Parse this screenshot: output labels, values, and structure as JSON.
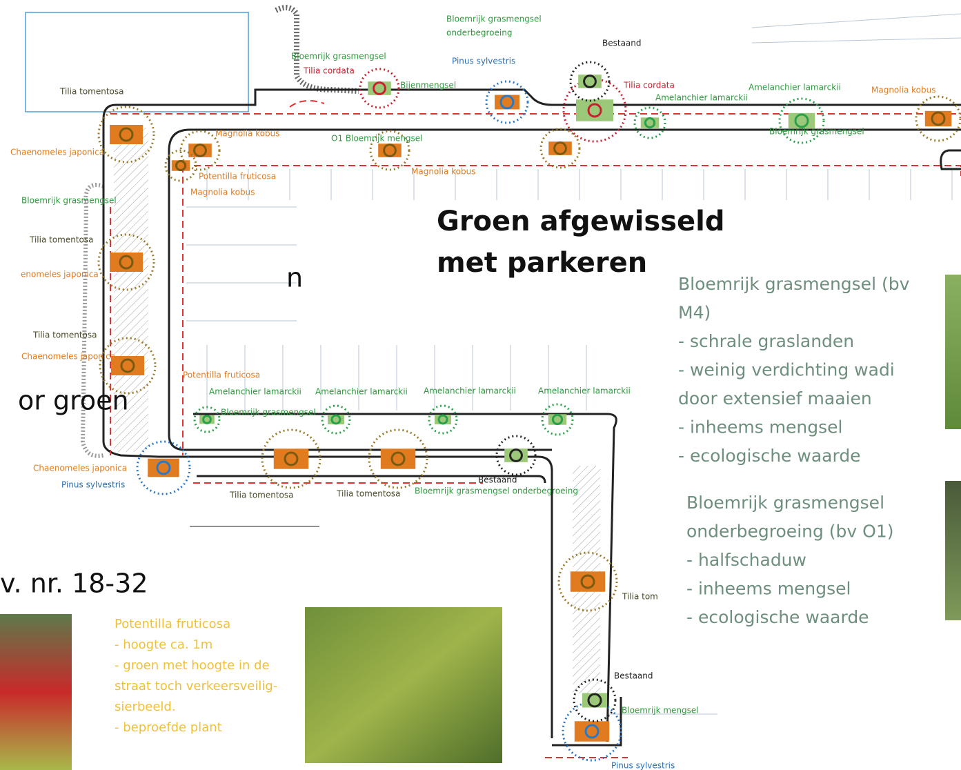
{
  "plan_labels": [
    "Bloemrijk grasmengsel",
    "onderbegroeing",
    "Bestaand",
    "Bloemrijk grasmengsel",
    "Pinus sylvestris",
    "Tilia cordata",
    "Bijenmengsel",
    "Tilia tomentosa",
    "Tilia cordata",
    "Amelanchier lamarckii",
    "Magnolia kobus",
    "Amelanchier lamarckii",
    "Magnolia kobus",
    "O1 Bloemrijk mengsel",
    "Bloemrijk grasmengsel",
    "Chaenomeles japonica",
    "Potentilla fruticosa",
    "Magnolia kobus",
    "Magnolia kobus",
    "Bloemrijk grasmengsel",
    "Tilia tomentosa",
    "enomeles japonica",
    "Tilia tomentosa",
    "Chaenomeles japonica",
    "Potentilla fruticosa",
    "Amelanchier lamarckii",
    "Amelanchier lamarckii",
    "Amelanchier lamarckii",
    "Amelanchier lamarckii",
    "Bloemrijk grasmengsel",
    "Chaenomeles japonica",
    "Pinus sylvestris",
    "Bestaand",
    "Tilia tomentosa",
    "Tilia tomentosa",
    "Bloemrijk grasmengsel onderbegroeing",
    "Tilia tom",
    "Bestaand",
    "Bloemrijk mengsel",
    "Pinus sylvestris"
  ],
  "heading": [
    "Groen afgewisseld",
    "met parkeren"
  ],
  "cut_texts": [
    "n",
    "or groen",
    "v. nr. 18-32"
  ],
  "panel_m4": [
    "Bloemrijk grasmengsel (bv",
    "M4)",
    "- schrale graslanden",
    "- weinig verdichting wadi",
    "door extensief maaien",
    "- inheems mengsel",
    "- ecologische waarde"
  ],
  "panel_o1": [
    "Bloemrijk grasmengsel",
    "onderbegroeing (bv O1)",
    "- halfschaduw",
    "- inheems mengsel",
    "- ecologische waarde"
  ],
  "potentilla": [
    "Potentilla fruticosa",
    "- hoogte ca. 1m",
    "- groen met hoogte in de",
    "straat toch verkeersveilig-",
    "sierbeeld.",
    "- beproefde plant"
  ]
}
